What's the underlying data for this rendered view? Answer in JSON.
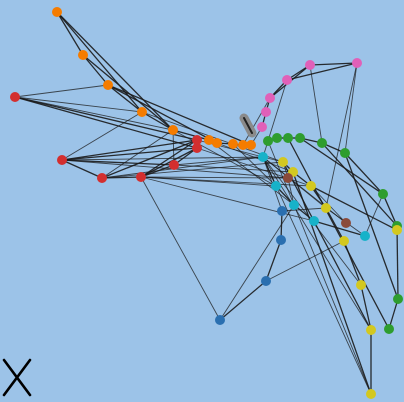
{
  "game": {
    "type": "graph-untangle",
    "background_color": "#9cc3e8",
    "edge_color": "#1a1a1a",
    "close_button": {
      "icon": "close-icon"
    },
    "selected_node": {
      "icon": "grab-handle-icon",
      "color": "#8a8a8a"
    },
    "clusters": [
      {
        "name": "red",
        "color": "#d32f2f",
        "count": 7
      },
      {
        "name": "orange",
        "color": "#f57c00",
        "count": 10
      },
      {
        "name": "pink",
        "color": "#e060b8",
        "count": 6
      },
      {
        "name": "green",
        "color": "#2e9d2e",
        "count": 10
      },
      {
        "name": "cyan",
        "color": "#17b2c9",
        "count": 5
      },
      {
        "name": "yellow",
        "color": "#d3c81f",
        "count": 9
      },
      {
        "name": "blue",
        "color": "#2a6fb0",
        "count": 4
      },
      {
        "name": "brown",
        "color": "#8a4a3a",
        "count": 2
      }
    ]
  }
}
